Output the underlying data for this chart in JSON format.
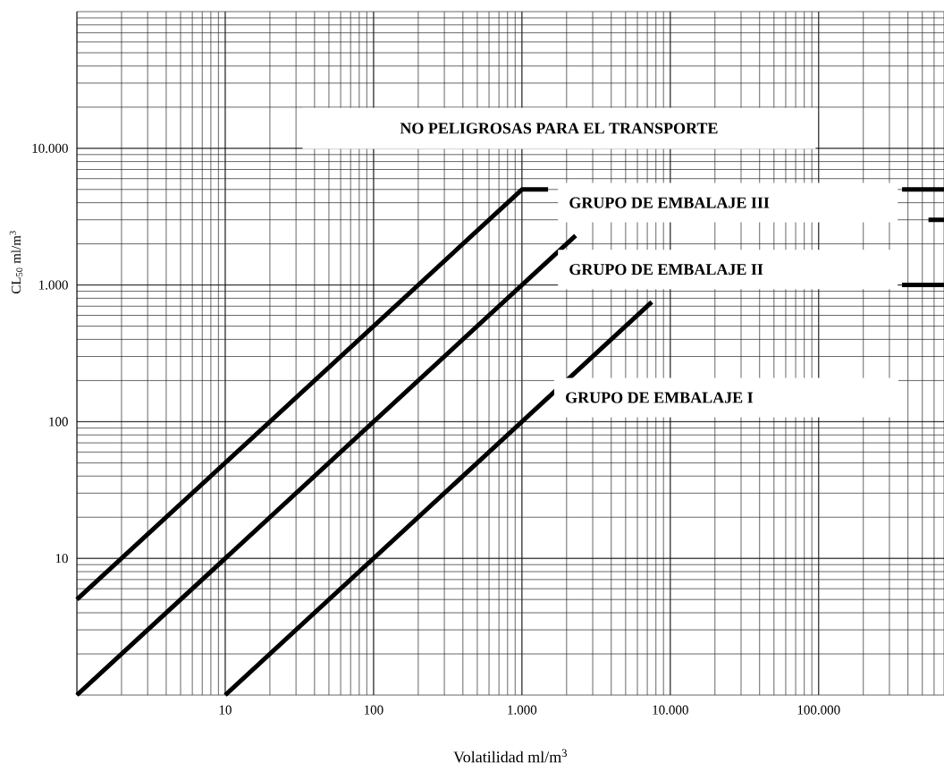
{
  "chart_data": {
    "type": "line",
    "xlabel": "Volatilidad ml/m$^{3}$",
    "ylabel": "CL$_{50}$ ml/m$^{3}$",
    "annotations": [
      "NO PELIGROSAS PARA EL TRANSPORTE",
      "GRUPO DE EMBALAJE III",
      "GRUPO DE EMBALAJE II",
      "GRUPO DE EMBALAJE I"
    ],
    "log": "xy",
    "grid": true,
    "xlim": [
      1,
      700000
    ],
    "ylim": [
      1,
      100000
    ],
    "xticks": [
      10,
      100,
      {
        "value": 1000,
        "label": "1.000"
      },
      {
        "value": 10000,
        "label": "10.000"
      },
      {
        "value": 100000,
        "label": "100.000"
      }
    ],
    "yticks": [
      10,
      100,
      {
        "value": 1000,
        "label": "1.000"
      },
      {
        "value": 10000,
        "label": "10.000"
      }
    ],
    "series": [
      {
        "color": "#000000",
        "x": [
          1,
          1000,
          1500,
          3000,
          365000,
          700000
        ],
        "values": [
          5,
          5000,
          5000,
          null,
          5000,
          5000
        ]
      },
      {
        "color": "#000000",
        "x": [
          1,
          2300,
          3000,
          550000,
          700000
        ],
        "values": [
          1,
          2300,
          null,
          3000,
          3000
        ]
      },
      {
        "color": "#000000",
        "x": [
          10,
          7500,
          9000,
          365000,
          700000
        ],
        "values": [
          1,
          750,
          null,
          1000,
          1000
        ]
      }
    ]
  }
}
